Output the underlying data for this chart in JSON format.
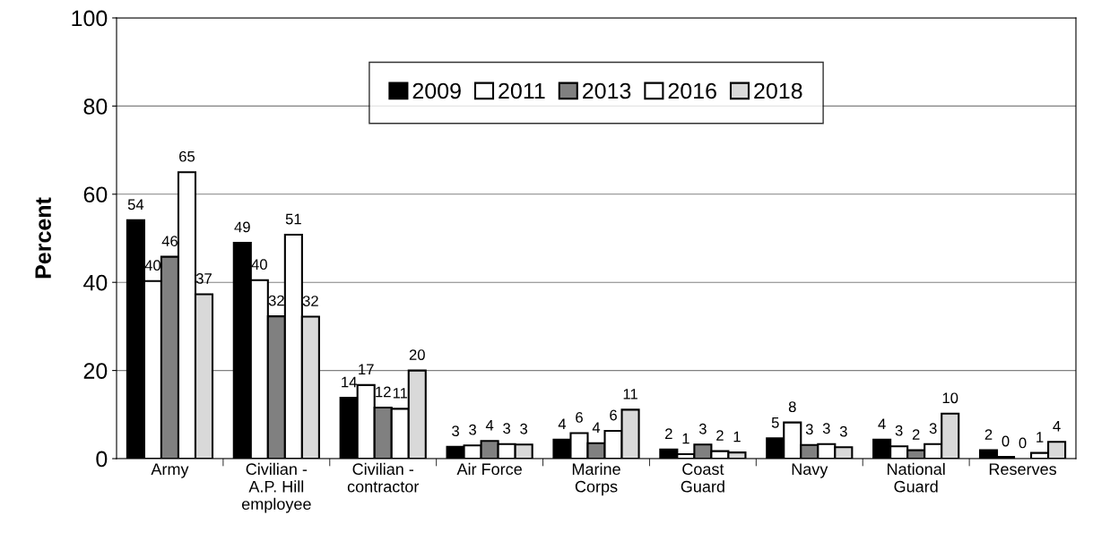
{
  "chart_data": {
    "type": "bar",
    "ylabel": "Percent",
    "categories": [
      "Army",
      "Civilian -\nA.P. Hill\nemployee",
      "Civilian -\ncontractor",
      "Air Force",
      "Marine\nCorps",
      "Coast\nGuard",
      "Navy",
      "National\nGuard",
      "Reserves"
    ],
    "series": [
      {
        "name": "2009",
        "color": "#000000",
        "values": [
          54.1,
          49,
          13.8,
          2.7,
          4.3,
          2.1,
          4.6,
          4.3,
          1.9
        ],
        "value_labels": [
          "54",
          "49",
          "14",
          "3",
          "4",
          "2",
          "5",
          "4",
          "2"
        ]
      },
      {
        "name": "2011",
        "color": "#ffffff",
        "values": [
          40.3,
          40.5,
          16.7,
          3.0,
          5.8,
          1.0,
          8.2,
          2.8,
          0.4
        ],
        "value_labels": [
          "40",
          "40",
          "17",
          "3",
          "6",
          "1",
          "8",
          "3",
          "0"
        ]
      },
      {
        "name": "2013",
        "color": "#808080",
        "values": [
          45.8,
          32.3,
          11.6,
          4.0,
          3.5,
          3.2,
          3.1,
          1.9,
          0.0
        ],
        "value_labels": [
          "46",
          "32",
          "12",
          "4",
          "4",
          "3",
          "3",
          "2",
          "0"
        ]
      },
      {
        "name": "2016",
        "color": "#ffffff",
        "values": [
          65,
          50.8,
          11.3,
          3.3,
          6.3,
          1.7,
          3.3,
          3.3,
          1.3
        ],
        "value_labels": [
          "65",
          "51",
          "11",
          "3",
          "6",
          "2",
          "3",
          "3",
          "1"
        ]
      },
      {
        "name": "2018",
        "color": "#d9d9d9",
        "values": [
          37.3,
          32.2,
          20,
          3.2,
          11.1,
          1.4,
          2.6,
          10.2,
          3.8
        ],
        "value_labels": [
          "37",
          "32",
          "20",
          "3",
          "11",
          "1",
          "3",
          "10",
          "4"
        ]
      }
    ],
    "ylim": [
      0,
      100
    ],
    "yticks": [
      0,
      20,
      40,
      60,
      80,
      100
    ],
    "grid": "y",
    "legend": "top"
  }
}
